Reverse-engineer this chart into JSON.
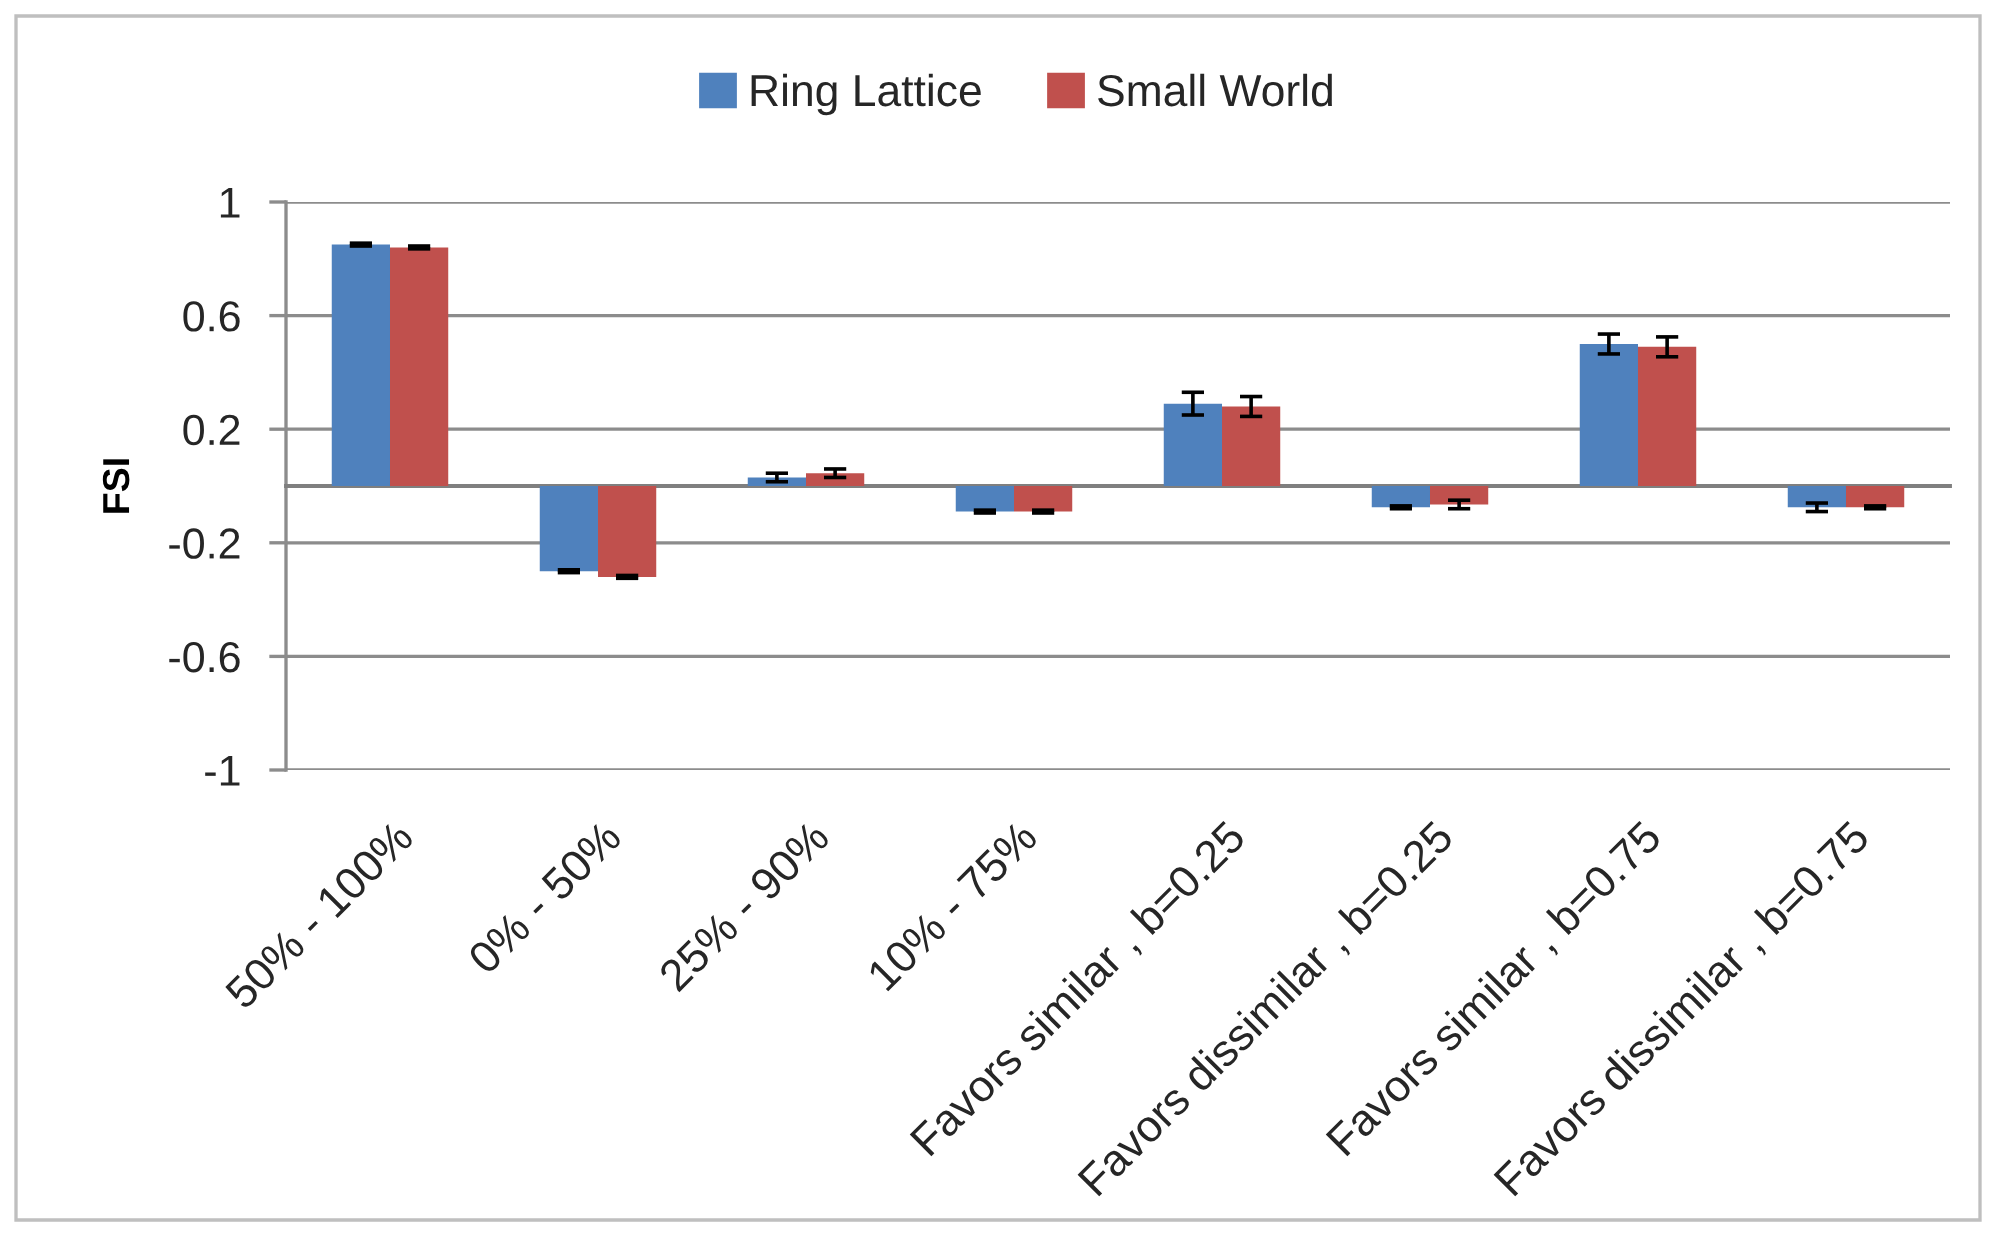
{
  "chart_data": {
    "type": "bar",
    "ylabel": "FSI",
    "categories": [
      "50% - 100%",
      "0% - 50%",
      "25% - 90%",
      "10% - 75%",
      "Favors similar , b=0.25",
      "Favors dissimilar , b=0.25",
      "Favors similar , b=0.75",
      "Favors dissimilar , b=0.75"
    ],
    "series": [
      {
        "name": "Ring Lattice",
        "color": "#4f81bd",
        "values": [
          0.85,
          -0.3,
          0.03,
          -0.09,
          0.29,
          -0.075,
          0.5,
          -0.075
        ],
        "errors": [
          0.005,
          0.005,
          0.015,
          0.005,
          0.04,
          0.005,
          0.035,
          0.015
        ]
      },
      {
        "name": "Small World",
        "color": "#c0504d",
        "values": [
          0.84,
          -0.32,
          0.045,
          -0.09,
          0.28,
          -0.065,
          0.49,
          -0.075
        ],
        "errors": [
          0.005,
          0.005,
          0.015,
          0.005,
          0.035,
          0.015,
          0.035,
          0.005
        ]
      }
    ],
    "ylim": [
      -1,
      1
    ],
    "yticks": [
      -1,
      -0.6,
      -0.2,
      0.2,
      0.6,
      1
    ],
    "grid": "y",
    "legend": "top"
  }
}
